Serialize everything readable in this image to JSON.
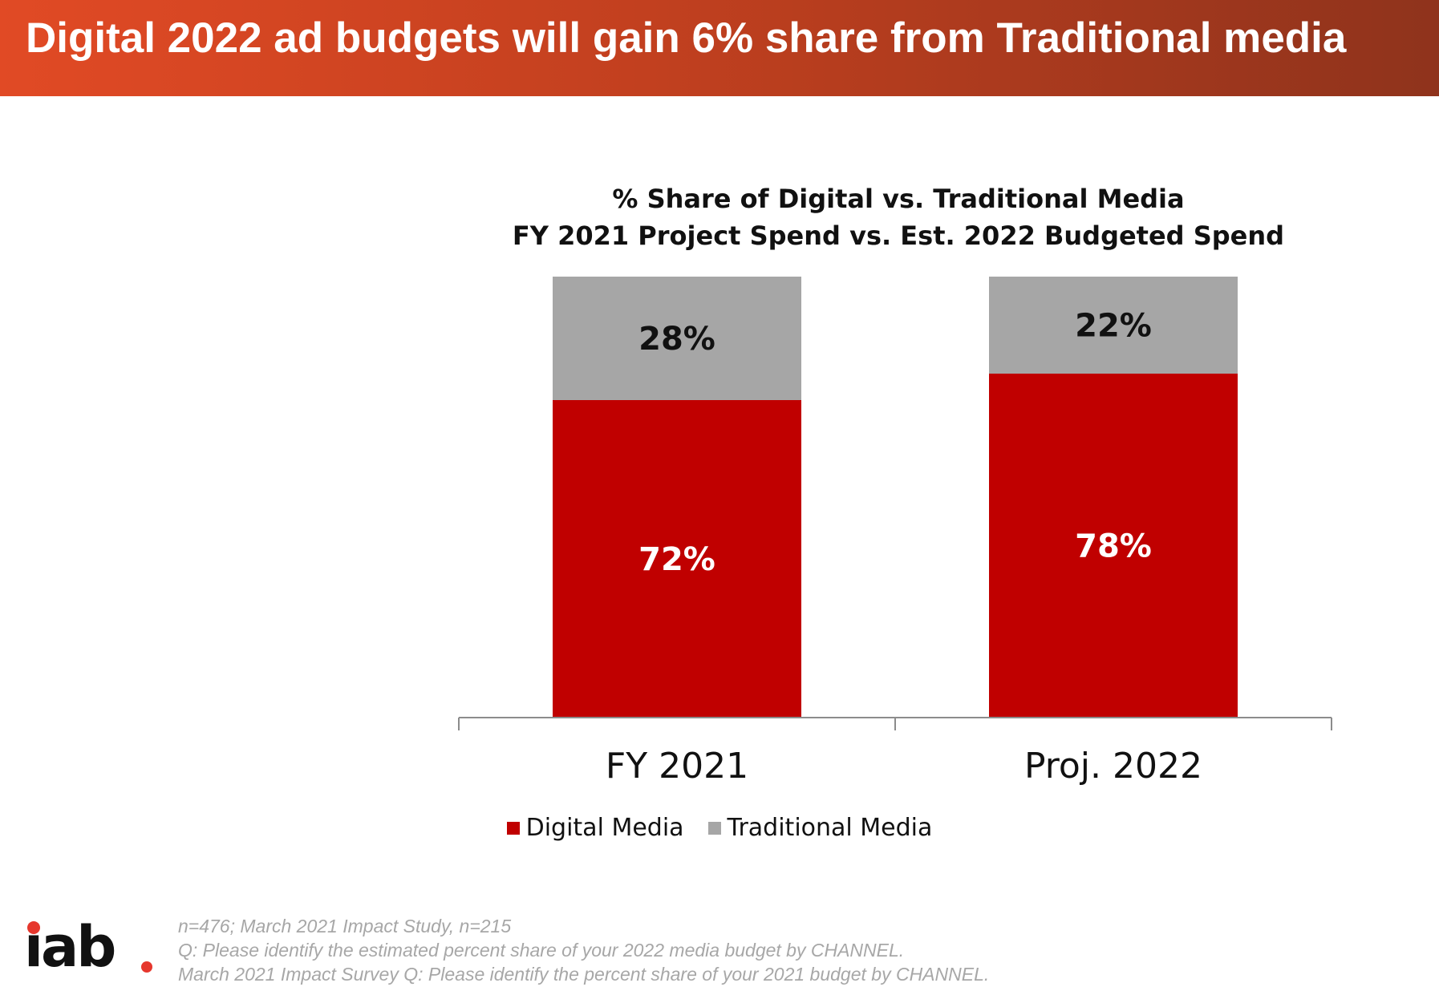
{
  "header": {
    "title": "Digital 2022 ad budgets will gain 6% share from Traditional media"
  },
  "chart_data": {
    "type": "bar",
    "stacked": true,
    "title": "% Share of Digital vs. Traditional Media",
    "subtitle": "FY 2021 Project Spend vs. Est. 2022 Budgeted Spend",
    "categories": [
      "FY 2021",
      "Proj. 2022"
    ],
    "series": [
      {
        "name": "Digital Media",
        "values": [
          72,
          78
        ],
        "labels": [
          "72%",
          "78%"
        ],
        "color": "#c00000"
      },
      {
        "name": "Traditional Media",
        "values": [
          28,
          22
        ],
        "labels": [
          "28%",
          "22%"
        ],
        "color": "#a6a6a6"
      }
    ],
    "ylim": [
      0,
      100
    ],
    "grid": false,
    "legend_position": "bottom"
  },
  "footnotes": [
    "n=476; March 2021 Impact Study, n=215",
    "Q: Please identify the estimated percent share of your 2022 media budget by CHANNEL.",
    "March 2021 Impact Survey Q: Please identify the percent share of your 2021 budget by CHANNEL."
  ],
  "logo": {
    "text": "iab",
    "dot_color": "#e6372d"
  }
}
